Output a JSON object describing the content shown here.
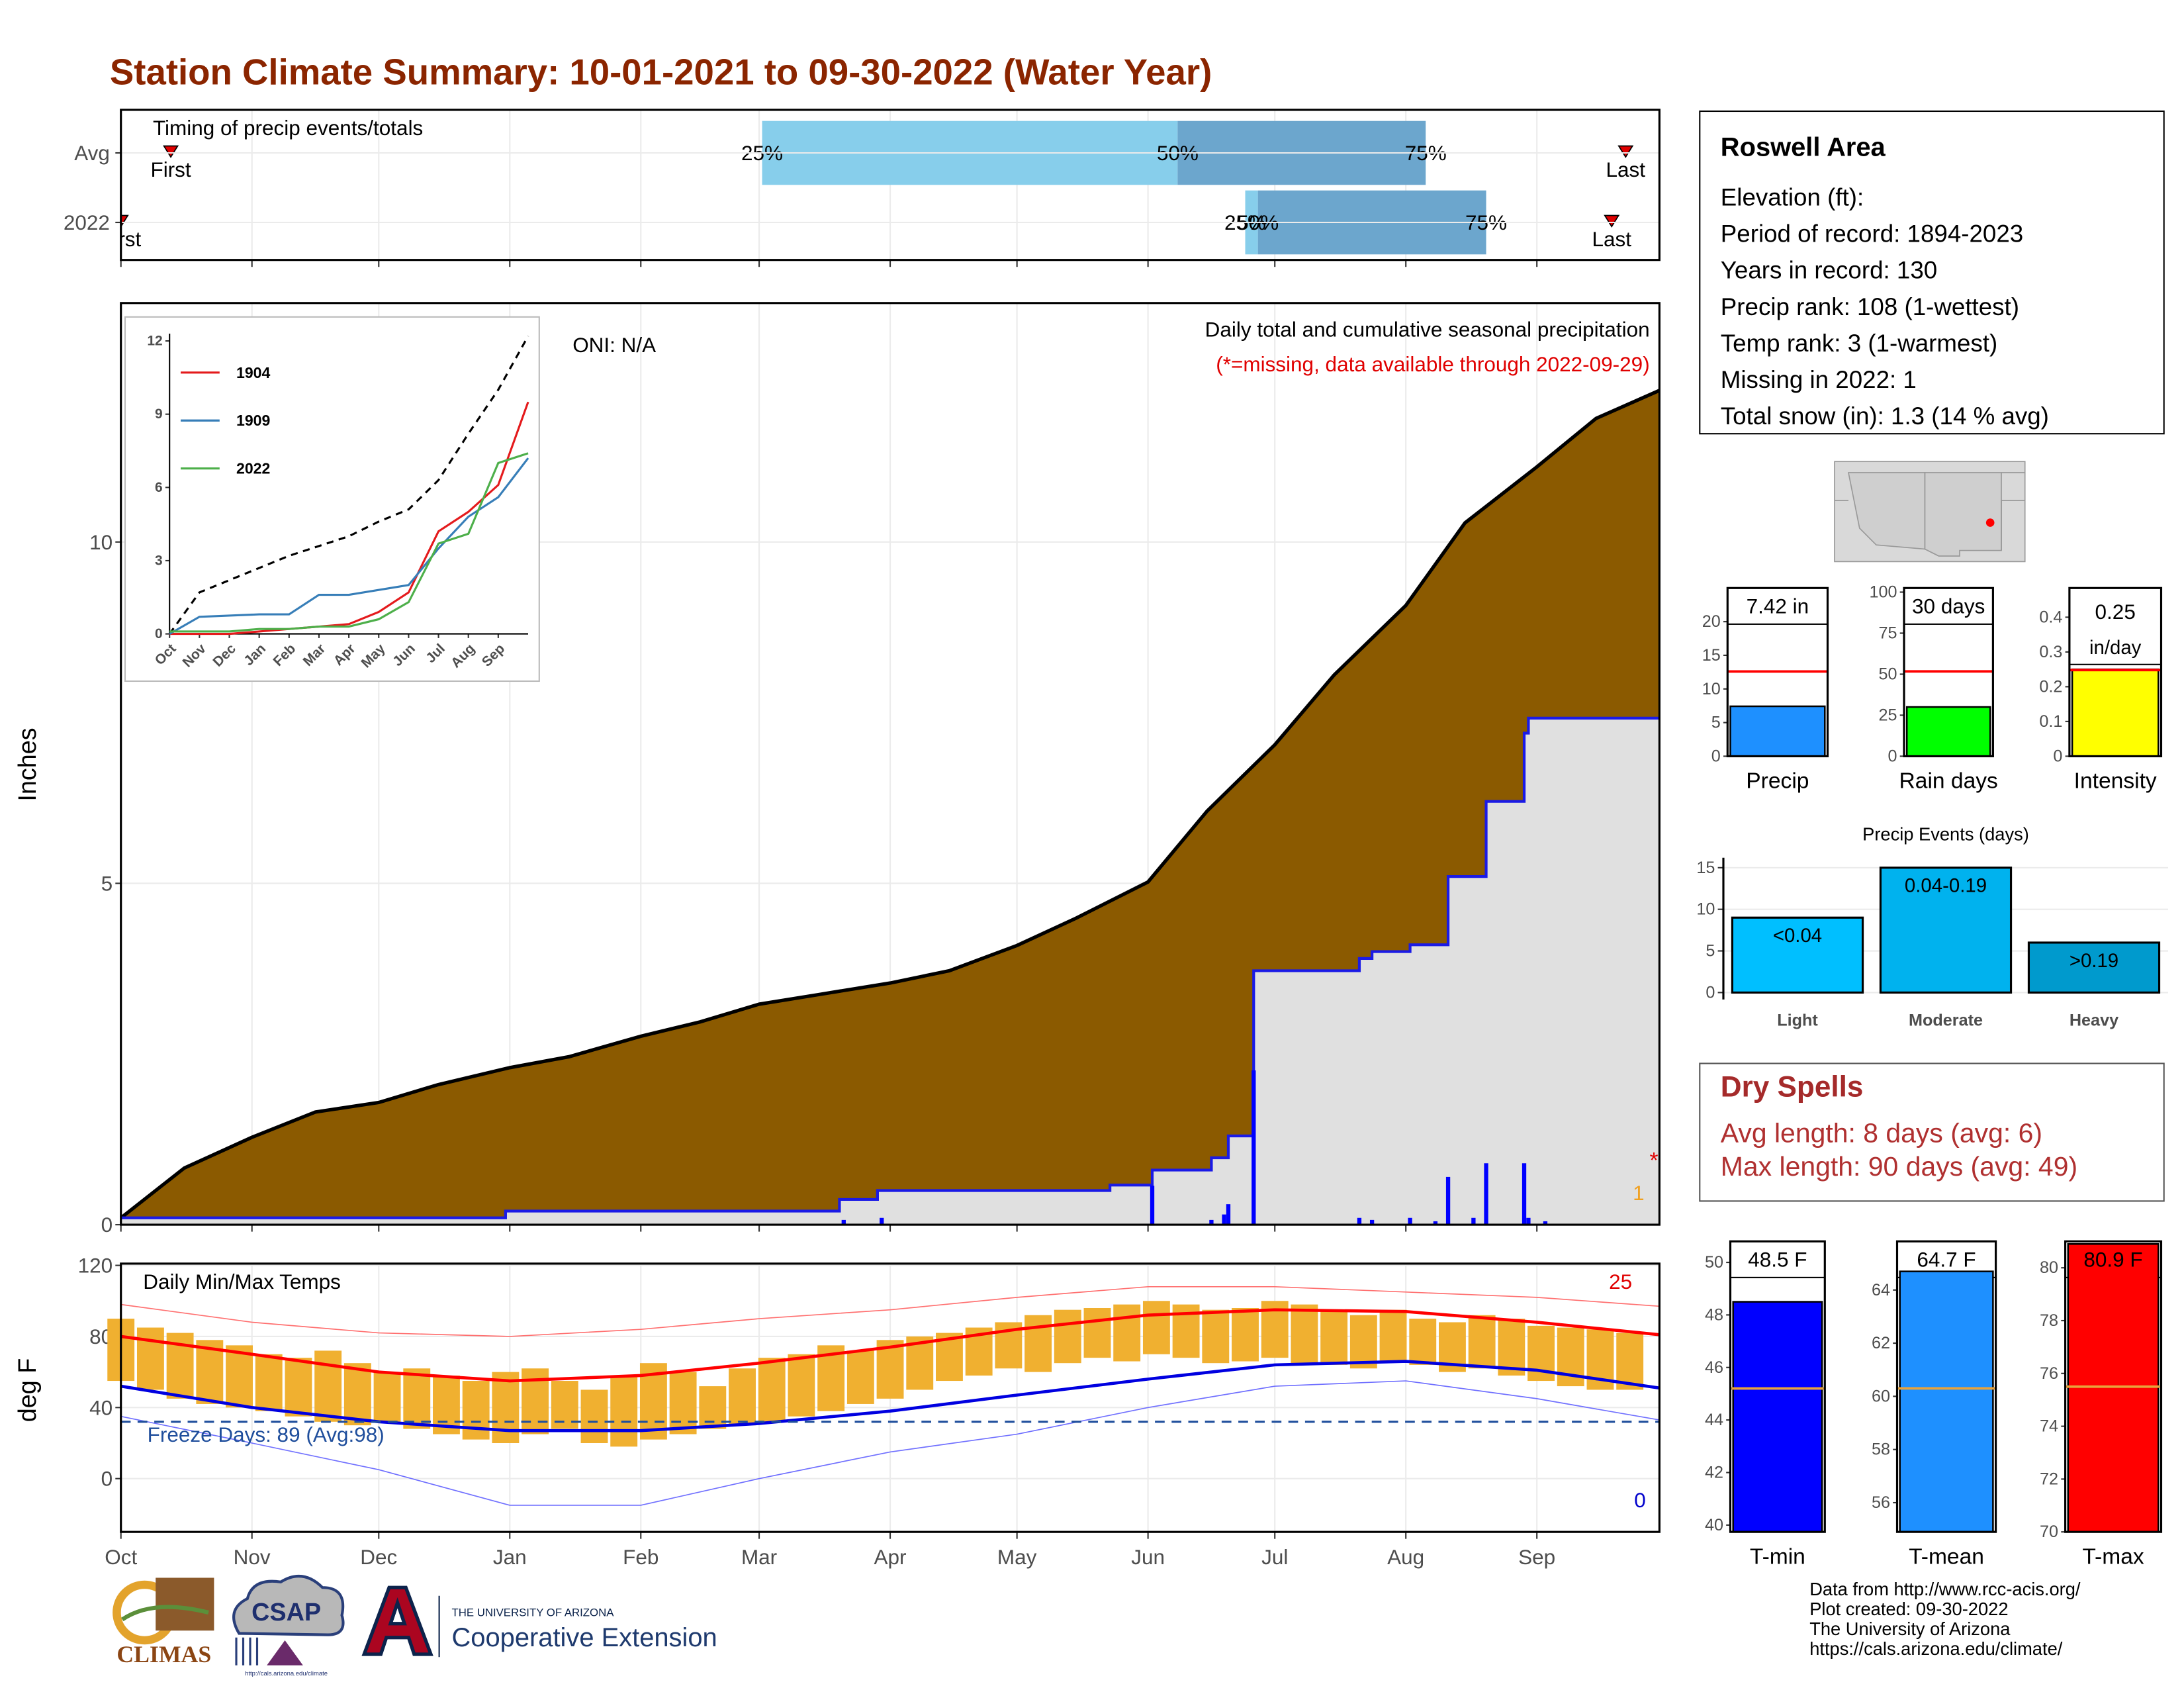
{
  "title": "Station Climate Summary: 10-01-2021 to 09-30-2022 (Water Year)",
  "info_box": {
    "title": "Roswell Area",
    "lines": [
      "Elevation (ft):",
      "Period of record: 1894-2023",
      "Years in record: 130",
      "Precip rank: 108 (1-wettest)",
      "Temp rank: 3 (1-warmest)",
      "Missing in 2022: 1",
      "Total snow (in): 1.3 (14 % avg)"
    ]
  },
  "dry_spells": {
    "title": "Dry Spells",
    "lines": [
      "Avg length: 8 days (avg: 6)",
      "Max length: 90 days (avg: 49)"
    ]
  },
  "footer": [
    "Data from http://www.rcc-acis.org/",
    "Plot created: 09-30-2022",
    "The University of Arizona",
    "https://cals.arizona.edu/climate/"
  ],
  "logos": {
    "climas": "CLIMAS",
    "csap": "CSAP",
    "csap_url": "http://cals.arizona.edu/climate",
    "ua": "THE UNIVERSITY OF ARIZONA",
    "extension": "Cooperative Extension"
  },
  "chart_data": [
    {
      "type": "timeline",
      "title": "Timing of precip events/totals",
      "categories": [
        "Avg",
        "2022"
      ],
      "series": [
        {
          "name": "First",
          "marker": "triangle",
          "color": "#e00000",
          "values": [
            11.8,
            0
          ]
        },
        {
          "name": "25%",
          "color": "#87ceeb",
          "values": [
            151.7,
            266
          ]
        },
        {
          "name": "50%",
          "color": "#6ca6cd",
          "values": [
            250,
            269
          ]
        },
        {
          "name": "75%",
          "values": [
            308.7,
            323
          ]
        },
        {
          "name": "Last",
          "marker": "triangle",
          "color": "#e00000",
          "values": [
            356,
            352.7
          ]
        }
      ],
      "xlim": [
        0,
        364
      ],
      "xticks": [
        0,
        31,
        61,
        92,
        123,
        151,
        182,
        212,
        243,
        273,
        304,
        335
      ],
      "grid": true
    },
    {
      "type": "precip",
      "ylabel": "Inches",
      "title": "Daily total and cumulative seasonal precipitation",
      "subtitle": "(*=missing, data available through 2022-09-29)",
      "oni": "ONI: N/A",
      "missing_count": 1,
      "missing_mark": "*",
      "xlim": [
        0,
        364
      ],
      "xticks": [
        0,
        31,
        61,
        92,
        123,
        151,
        182,
        212,
        243,
        273,
        304,
        335
      ],
      "ylim": [
        0,
        13.5
      ],
      "yticks": [
        0,
        5,
        10
      ],
      "grid": true,
      "series": [
        {
          "type": "area",
          "color": "#8b5a00",
          "x": [
            0,
            15,
            31,
            46,
            61,
            75,
            92,
            106,
            123,
            137,
            151,
            165,
            182,
            196,
            212,
            226,
            243,
            257,
            273,
            287,
            304,
            318,
            335,
            349,
            364
          ],
          "values": [
            0.1,
            0.83,
            1.28,
            1.65,
            1.79,
            2.05,
            2.3,
            2.46,
            2.76,
            2.97,
            3.23,
            3.37,
            3.54,
            3.72,
            4.09,
            4.49,
            5.02,
            6.06,
            7.03,
            8.05,
            9.07,
            10.28,
            11.1,
            11.81,
            12.22
          ]
        },
        {
          "type": "step_area",
          "color": "#1a1ae6",
          "fill": "#e0e0e0",
          "x": [
            0,
            91,
            91,
            170,
            170,
            179,
            179,
            234,
            234,
            244,
            244,
            258,
            258,
            262,
            262,
            268,
            268,
            293,
            293,
            296,
            296,
            305,
            305,
            314,
            314,
            323,
            323,
            332,
            332,
            333,
            333,
            364
          ],
          "values": [
            0.1,
            0.1,
            0.2,
            0.2,
            0.37,
            0.37,
            0.5,
            0.5,
            0.58,
            0.58,
            0.8,
            0.8,
            0.98,
            0.98,
            1.3,
            1.3,
            3.72,
            3.72,
            3.9,
            3.9,
            4.0,
            4.0,
            4.1,
            4.1,
            5.1,
            5.1,
            6.2,
            6.2,
            7.2,
            7.2,
            7.42,
            7.42
          ]
        },
        {
          "type": "bar",
          "color": "#0000ff",
          "x": [
            171,
            180,
            244,
            258,
            261,
            262,
            268,
            293,
            296,
            305,
            311,
            314,
            320,
            323,
            332,
            333,
            337
          ],
          "values": [
            0.07,
            0.1,
            0.57,
            0.07,
            0.15,
            0.3,
            2.26,
            0.1,
            0.07,
            0.1,
            0.05,
            0.7,
            0.1,
            0.9,
            0.9,
            0.1,
            0.05
          ]
        }
      ]
    },
    {
      "type": "line",
      "xlim": [
        0,
        12
      ],
      "ylim": [
        0,
        12.3
      ],
      "yticks": [
        0,
        3,
        6,
        9,
        12
      ],
      "xticks": [
        {
          "value": 0,
          "label": "Oct"
        },
        {
          "value": 1,
          "label": "Nov"
        },
        {
          "value": 2,
          "label": "Dec"
        },
        {
          "value": 3,
          "label": "Jan"
        },
        {
          "value": 4,
          "label": "Feb"
        },
        {
          "value": 5,
          "label": "Mar"
        },
        {
          "value": 6,
          "label": "Apr"
        },
        {
          "value": 7,
          "label": "May"
        },
        {
          "value": 8,
          "label": "Jun"
        },
        {
          "value": 9,
          "label": "Jul"
        },
        {
          "value": 10,
          "label": "Aug"
        },
        {
          "value": 11,
          "label": "Sep"
        }
      ],
      "legend": "top-left",
      "x": [
        0,
        1,
        2,
        3,
        4,
        5,
        6,
        7,
        8,
        9,
        10,
        11,
        12
      ],
      "series": [
        {
          "color": "#000000",
          "dashed": true,
          "values": [
            0,
            1.7,
            2.2,
            2.7,
            3.2,
            3.6,
            4.0,
            4.6,
            5.1,
            6.3,
            8.2,
            10.0,
            12.2
          ]
        },
        {
          "name": "1904",
          "color": "#e41a1c",
          "values": [
            0,
            0,
            0,
            0.1,
            0.2,
            0.3,
            0.4,
            0.9,
            1.7,
            4.2,
            5.0,
            6.1,
            9.5
          ]
        },
        {
          "name": "1909",
          "color": "#377eb8",
          "values": [
            0,
            0.7,
            0.75,
            0.8,
            0.8,
            1.6,
            1.6,
            1.8,
            2.0,
            3.5,
            4.8,
            5.6,
            7.2
          ]
        },
        {
          "name": "2022",
          "color": "#4daf4a",
          "values": [
            0.1,
            0.1,
            0.1,
            0.2,
            0.2,
            0.3,
            0.3,
            0.6,
            1.3,
            3.7,
            4.1,
            7.0,
            7.4
          ]
        }
      ]
    },
    {
      "type": "temps",
      "ylabel": "deg F",
      "title": "Daily Min/Max Temps",
      "freeze_line": 32,
      "freeze_color": "#1f4e9c",
      "freeze_label": "Freeze Days: 89 (Avg:98)",
      "record_high_count": 25,
      "record_low_count": 0,
      "xlim": [
        0,
        364
      ],
      "ylim": [
        -30,
        121
      ],
      "yticks": [
        0,
        40,
        80,
        120
      ],
      "grid": true,
      "xticks": [
        {
          "value": 0,
          "label": "Oct"
        },
        {
          "value": 31,
          "label": "Nov"
        },
        {
          "value": 61,
          "label": "Dec"
        },
        {
          "value": 92,
          "label": "Jan"
        },
        {
          "value": 123,
          "label": "Feb"
        },
        {
          "value": 151,
          "label": "Mar"
        },
        {
          "value": 182,
          "label": "Apr"
        },
        {
          "value": 212,
          "label": "May"
        },
        {
          "value": 243,
          "label": "Jun"
        },
        {
          "value": 273,
          "label": "Jul"
        },
        {
          "value": 304,
          "label": "Aug"
        },
        {
          "value": 335,
          "label": "Sep"
        }
      ],
      "series": [
        {
          "type": "thin",
          "color": "#ff7070",
          "x": [
            0,
            31,
            61,
            92,
            123,
            151,
            182,
            212,
            243,
            273,
            304,
            335,
            364
          ],
          "values": [
            98,
            88,
            82,
            80,
            84,
            90,
            95,
            102,
            108,
            108,
            105,
            102,
            97
          ]
        },
        {
          "type": "thin",
          "color": "#7070ff",
          "x": [
            0,
            31,
            61,
            92,
            123,
            151,
            182,
            212,
            243,
            273,
            304,
            335,
            364
          ],
          "values": [
            35,
            20,
            5,
            -15,
            -15,
            0,
            15,
            25,
            40,
            52,
            55,
            45,
            33
          ]
        },
        {
          "type": "range",
          "color": "#f0b030",
          "x": [
            0,
            7,
            14,
            21,
            28,
            35,
            42,
            49,
            56,
            63,
            70,
            77,
            84,
            91,
            98,
            105,
            112,
            119,
            126,
            133,
            140,
            147,
            154,
            161,
            168,
            175,
            182,
            189,
            196,
            203,
            210,
            217,
            224,
            231,
            238,
            245,
            252,
            259,
            266,
            273,
            280,
            287,
            294,
            301,
            308,
            315,
            322,
            329,
            336,
            343,
            350,
            357
          ],
          "low": [
            55,
            50,
            45,
            42,
            40,
            38,
            35,
            32,
            30,
            32,
            28,
            25,
            22,
            20,
            25,
            28,
            20,
            18,
            22,
            25,
            28,
            30,
            32,
            35,
            38,
            42,
            45,
            50,
            55,
            58,
            62,
            60,
            65,
            68,
            66,
            70,
            68,
            65,
            66,
            68,
            65,
            64,
            62,
            66,
            64,
            60,
            62,
            58,
            55,
            52,
            50,
            50
          ],
          "high": [
            90,
            85,
            82,
            78,
            75,
            70,
            68,
            72,
            65,
            60,
            62,
            58,
            55,
            60,
            62,
            55,
            50,
            58,
            65,
            60,
            52,
            62,
            68,
            70,
            75,
            72,
            78,
            80,
            82,
            85,
            88,
            92,
            95,
            96,
            98,
            100,
            98,
            95,
            96,
            100,
            98,
            94,
            92,
            95,
            90,
            88,
            92,
            90,
            86,
            85,
            84,
            82
          ]
        },
        {
          "type": "line",
          "color": "#ff0000",
          "x": [
            0,
            31,
            61,
            92,
            123,
            151,
            182,
            212,
            243,
            273,
            304,
            335,
            364
          ],
          "values": [
            80,
            70,
            60,
            55,
            58,
            65,
            74,
            84,
            92,
            95,
            94,
            88,
            81
          ]
        },
        {
          "type": "line",
          "color": "#0000e0",
          "x": [
            0,
            31,
            61,
            92,
            123,
            151,
            182,
            212,
            243,
            273,
            304,
            335,
            364
          ],
          "values": [
            52,
            40,
            32,
            27,
            27,
            31,
            38,
            47,
            56,
            64,
            66,
            61,
            51
          ]
        }
      ]
    },
    {
      "type": "gauge",
      "xlabel": "Precip",
      "values": [
        7.42
      ],
      "value_labels": [
        "7.42 in"
      ],
      "avg": 12.6,
      "avg_color": "#ff0000",
      "color": "#1e90ff",
      "ylim": [
        0,
        25
      ],
      "yticks": [
        0,
        5,
        10,
        15,
        20
      ]
    },
    {
      "type": "gauge",
      "xlabel": "Rain days",
      "values": [
        30
      ],
      "value_labels": [
        "30 days"
      ],
      "avg": 51.7,
      "avg_color": "#ff0000",
      "color": "#00ff00",
      "ylim": [
        0,
        102.5
      ],
      "yticks": [
        0,
        25,
        50,
        75,
        100
      ]
    },
    {
      "type": "gauge",
      "xlabel": "Intensity",
      "values": [
        0.25
      ],
      "value_labels": [
        "0.25"
      ],
      "unit_label": "in/day",
      "avg": 0.248,
      "avg_color": "#ff0000",
      "color": "#ffff00",
      "ylim": [
        0,
        0.484
      ],
      "yticks": [
        0.0,
        0.1,
        0.2,
        0.3,
        0.4
      ]
    },
    {
      "type": "bar",
      "title": "Precip Events (days)",
      "categories": [
        "Light",
        "Moderate",
        "Heavy"
      ],
      "ranges": [
        "<0.04",
        "0.04-0.19",
        ">0.19"
      ],
      "values": [
        9,
        15,
        6
      ],
      "colors": [
        "#00bfff",
        "#00b2ee",
        "#009acd"
      ],
      "ylim": [
        0,
        16.2
      ],
      "yticks": [
        0,
        5,
        10,
        15
      ],
      "grid": true
    },
    {
      "type": "gauge",
      "xlabel": "T-min",
      "values": [
        48.5
      ],
      "value_labels": [
        "48.5 F"
      ],
      "avg": 45.2,
      "avg_color": "#e8a33c",
      "color": "#0000ff",
      "ylim": [
        39.74,
        50.8
      ],
      "yticks": [
        40,
        42,
        44,
        46,
        48,
        50
      ]
    },
    {
      "type": "gauge",
      "xlabel": "T-mean",
      "values": [
        64.7
      ],
      "value_labels": [
        "64.7 F"
      ],
      "avg": 60.3,
      "avg_color": "#e8a33c",
      "color": "#1e90ff",
      "ylim": [
        54.9,
        65.83
      ],
      "yticks": [
        56,
        58,
        60,
        62,
        64
      ]
    },
    {
      "type": "gauge",
      "xlabel": "T-max",
      "values": [
        80.9
      ],
      "value_labels": [
        "80.9 F"
      ],
      "avg": 75.5,
      "avg_color": "#e8a33c",
      "color": "#ff0000",
      "ylim": [
        70,
        81.0
      ],
      "yticks": [
        70,
        72,
        74,
        76,
        78,
        80
      ]
    }
  ]
}
